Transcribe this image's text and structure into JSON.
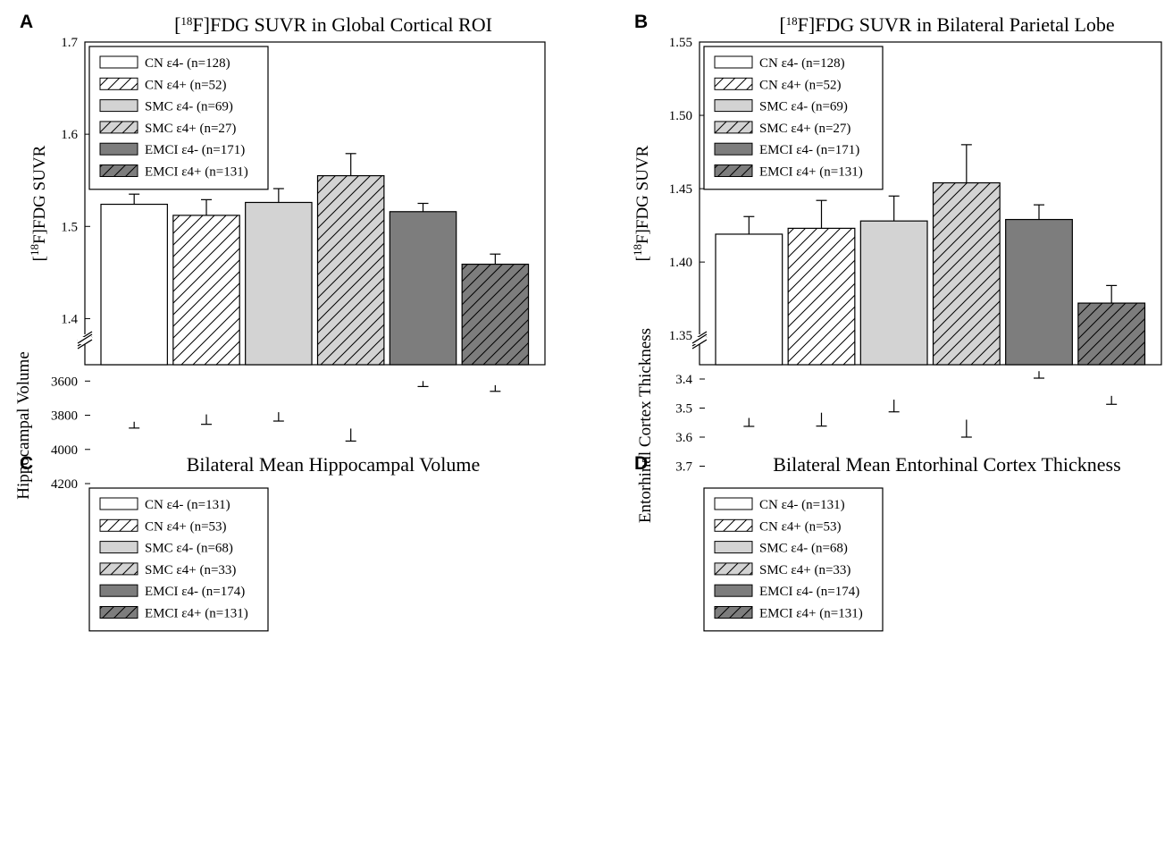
{
  "colors": {
    "CN_e4_neg": "#ffffff",
    "CN_e4_pos": "#ffffff",
    "SMC_e4_neg": "#d3d3d3",
    "SMC_e4_pos": "#d3d3d3",
    "EMCI_e4_neg": "#7d7d7d",
    "EMCI_e4_pos": "#7d7d7d",
    "stroke": "#000000"
  },
  "chart_data": [
    {
      "panel": "A",
      "type": "bar",
      "title_prefix": "[",
      "title_sup": "18",
      "title_rest": "F]FDG SUVR in Global Cortical ROI",
      "ylabel_prefix": "[",
      "ylabel_sup": "18",
      "ylabel_rest": "F]FDG SUVR",
      "ylim": [
        1.35,
        1.7
      ],
      "yticks": [
        "1.4",
        "1.5",
        "1.6",
        "1.7"
      ],
      "axis_break": true,
      "legend_placement": "top-left",
      "series": [
        {
          "name": "CN ε4- (n=128)",
          "value": 1.524,
          "error": 0.011,
          "hatch": false
        },
        {
          "name": "CN ε4+ (n=52)",
          "value": 1.512,
          "error": 0.017,
          "hatch": true
        },
        {
          "name": "SMC ε4- (n=69)",
          "value": 1.526,
          "error": 0.015,
          "hatch": false
        },
        {
          "name": "SMC ε4+ (n=27)",
          "value": 1.555,
          "error": 0.024,
          "hatch": true
        },
        {
          "name": "EMCI ε4- (n=171)",
          "value": 1.516,
          "error": 0.009,
          "hatch": false
        },
        {
          "name": "EMCI ε4+ (n=131)",
          "value": 1.459,
          "error": 0.011,
          "hatch": true
        }
      ]
    },
    {
      "panel": "B",
      "type": "bar",
      "title_prefix": "[",
      "title_sup": "18",
      "title_rest": "F]FDG SUVR in Bilateral Parietal Lobe",
      "ylabel_prefix": "[",
      "ylabel_sup": "18",
      "ylabel_rest": "F]FDG SUVR",
      "ylim": [
        1.33,
        1.55
      ],
      "yticks": [
        "1.35",
        "1.40",
        "1.45",
        "1.50",
        "1.55"
      ],
      "axis_break": true,
      "legend_placement": "top-left",
      "series": [
        {
          "name": "CN ε4- (n=128)",
          "value": 1.419,
          "error": 0.012,
          "hatch": false
        },
        {
          "name": "CN ε4+ (n=52)",
          "value": 1.423,
          "error": 0.019,
          "hatch": true
        },
        {
          "name": "SMC ε4- (n=69)",
          "value": 1.428,
          "error": 0.017,
          "hatch": false
        },
        {
          "name": "SMC ε4+ (n=27)",
          "value": 1.454,
          "error": 0.026,
          "hatch": true
        },
        {
          "name": "EMCI ε4- (n=171)",
          "value": 1.429,
          "error": 0.01,
          "hatch": false
        },
        {
          "name": "EMCI ε4+ (n=131)",
          "value": 1.372,
          "error": 0.012,
          "hatch": true
        }
      ]
    },
    {
      "panel": "C",
      "type": "bar",
      "title_prefix": "",
      "title_sup": "",
      "title_rest": "Bilateral Mean Hippocampal Volume",
      "ylabel_prefix": "",
      "ylabel_sup": "",
      "ylabel_rest": "Hippocampal Volume",
      "ylim": [
        3520,
        4200
      ],
      "yticks": [
        "3600",
        "3800",
        "4000",
        "4200"
      ],
      "axis_break": true,
      "legend_placement": "top-left",
      "series": [
        {
          "name": "CN ε4- (n=131)",
          "value": 3838,
          "error": 37,
          "hatch": false
        },
        {
          "name": "CN ε4+ (n=53)",
          "value": 3795,
          "error": 58,
          "hatch": true
        },
        {
          "name": "SMC ε4- (n=68)",
          "value": 3782,
          "error": 52,
          "hatch": false
        },
        {
          "name": "SMC ε4+ (n=33)",
          "value": 3878,
          "error": 73,
          "hatch": true
        },
        {
          "name": "EMCI ε4- (n=174)",
          "value": 3600,
          "error": 32,
          "hatch": false
        },
        {
          "name": "EMCI ε4+ (n=131)",
          "value": 3624,
          "error": 36,
          "hatch": true
        }
      ]
    },
    {
      "panel": "D",
      "type": "bar",
      "title_prefix": "",
      "title_sup": "",
      "title_rest": "Bilateral Mean Entorhinal Cortex Thickness",
      "ylabel_prefix": "",
      "ylabel_sup": "",
      "ylabel_rest": "Entorhinal Cortex Thickness",
      "ylim": [
        3.36,
        3.76
      ],
      "yticks": [
        "3.4",
        "3.5",
        "3.6",
        "3.7"
      ],
      "axis_break": true,
      "legend_placement": "top-left",
      "series": [
        {
          "name": "CN ε4- (n=131)",
          "value": 3.534,
          "error": 0.029,
          "hatch": false
        },
        {
          "name": "CN ε4+ (n=53)",
          "value": 3.516,
          "error": 0.046,
          "hatch": true
        },
        {
          "name": "SMC ε4- (n=68)",
          "value": 3.471,
          "error": 0.042,
          "hatch": false
        },
        {
          "name": "SMC ε4+ (n=33)",
          "value": 3.54,
          "error": 0.06,
          "hatch": true
        },
        {
          "name": "EMCI ε4- (n=174)",
          "value": 3.373,
          "error": 0.024,
          "hatch": false
        },
        {
          "name": "EMCI ε4+ (n=131)",
          "value": 3.458,
          "error": 0.029,
          "hatch": true
        }
      ]
    }
  ]
}
